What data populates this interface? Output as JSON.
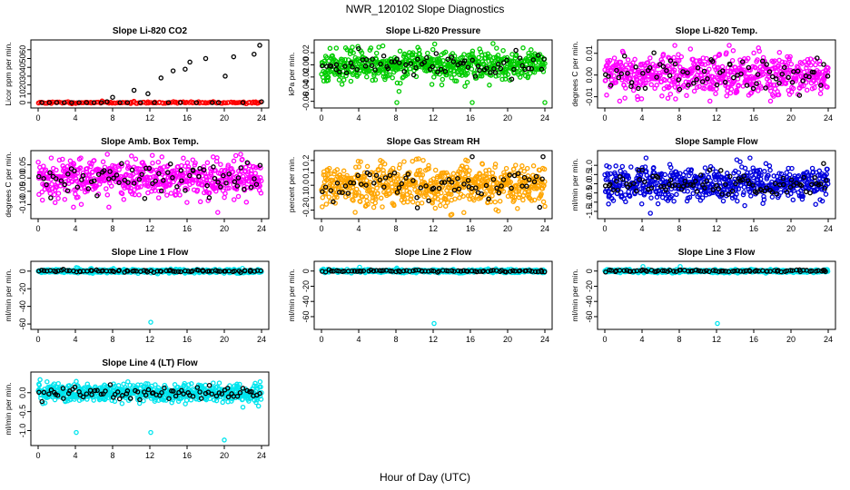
{
  "page": {
    "title": "NWR_120102  Slope Diagnostics",
    "xlabel": "Hour of Day (UTC)"
  },
  "chart_data": [
    {
      "type": "scatter",
      "title": "Slope Li-820 CO2",
      "ylabel": "Licor ppm per min.",
      "xlim": [
        0,
        24
      ],
      "xticks": [
        0,
        4,
        8,
        12,
        16,
        20,
        24
      ],
      "ylim": [
        -2,
        67
      ],
      "yticks": [
        0,
        10,
        20,
        30,
        40,
        50,
        60
      ],
      "color": "#ff0000",
      "series": [
        {
          "name": "all",
          "color": "#ff0000",
          "seed": 11,
          "n": 140,
          "center": 0,
          "spread": 0.5,
          "outliers": []
        },
        {
          "name": "flagged",
          "color": "#000000",
          "points": [
            [
              0.4,
              0
            ],
            [
              1.2,
              0
            ],
            [
              2,
              0
            ],
            [
              2.8,
              0
            ],
            [
              3.6,
              0
            ],
            [
              4.4,
              0
            ],
            [
              5.2,
              0
            ],
            [
              6,
              0
            ],
            [
              6.8,
              0
            ],
            [
              7.4,
              1
            ],
            [
              8,
              6
            ],
            [
              8.8,
              0
            ],
            [
              9.6,
              0
            ],
            [
              10.3,
              14
            ],
            [
              11,
              0
            ],
            [
              11.8,
              10
            ],
            [
              12.5,
              0
            ],
            [
              13.2,
              28
            ],
            [
              14,
              0
            ],
            [
              14.5,
              36
            ],
            [
              15.3,
              0
            ],
            [
              15.8,
              38
            ],
            [
              16.3,
              46
            ],
            [
              17,
              0
            ],
            [
              18,
              50
            ],
            [
              18.7,
              0
            ],
            [
              19.4,
              0
            ],
            [
              20.1,
              30
            ],
            [
              21,
              52
            ],
            [
              22,
              0
            ],
            [
              23.2,
              55
            ],
            [
              23.8,
              65
            ],
            [
              24,
              1
            ]
          ]
        }
      ]
    },
    {
      "type": "scatter",
      "title": "Slope Li-820 Pressure",
      "ylabel": "kPa per min.",
      "xlim": [
        0,
        24
      ],
      "xticks": [
        0,
        4,
        8,
        12,
        16,
        20,
        24
      ],
      "ylim": [
        -0.065,
        0.035
      ],
      "yticks": [
        -0.06,
        -0.04,
        -0.02,
        0.0,
        0.02
      ],
      "yticklabels": [
        "-0.06",
        "-0.04",
        "-0.02",
        "0.00",
        "0.02"
      ],
      "color": "#00cc00",
      "series": [
        {
          "name": "all",
          "color": "#00cc00",
          "seed": 23,
          "n": 600,
          "center": 0.0,
          "spread": 0.012,
          "outliers": [
            [
              2.2,
              -0.032
            ],
            [
              2.6,
              0.028
            ],
            [
              4.2,
              0.023
            ],
            [
              8.1,
              -0.062
            ],
            [
              16.2,
              -0.062
            ],
            [
              24,
              -0.062
            ]
          ]
        },
        {
          "name": "flagged",
          "color": "#000000",
          "seed": 29,
          "n": 75,
          "center": 0.0,
          "spread": 0.009,
          "outliers": []
        }
      ]
    },
    {
      "type": "scatter",
      "title": "Slope Li-820 Temp.",
      "ylabel": "degrees C per min.",
      "xlim": [
        0,
        24
      ],
      "xticks": [
        0,
        4,
        8,
        12,
        16,
        20,
        24
      ],
      "ylim": [
        -0.0135,
        0.0145
      ],
      "yticks": [
        -0.01,
        0.0,
        0.01
      ],
      "yticklabels": [
        "-0.01",
        "0.00",
        "0.01"
      ],
      "color": "#ff00ff",
      "series": [
        {
          "name": "all",
          "color": "#ff00ff",
          "seed": 37,
          "n": 600,
          "center": 0.0,
          "spread": 0.0045,
          "outliers": [
            [
              1.6,
              -0.012
            ],
            [
              7.6,
              -0.011
            ],
            [
              9.2,
              0.012
            ],
            [
              11.3,
              -0.012
            ],
            [
              16.6,
              0.011
            ],
            [
              17.8,
              -0.012
            ]
          ]
        },
        {
          "name": "flagged",
          "color": "#000000",
          "seed": 41,
          "n": 75,
          "center": 0.0,
          "spread": 0.004,
          "outliers": []
        }
      ]
    },
    {
      "type": "scatter",
      "title": "Slope Amb. Box Temp.",
      "ylabel": "degrees C per min.",
      "xlim": [
        0,
        24
      ],
      "xticks": [
        0,
        4,
        8,
        12,
        16,
        20,
        24
      ],
      "ylim": [
        -0.14,
        0.09
      ],
      "yticks": [
        -0.1,
        -0.05,
        0.0,
        0.05
      ],
      "yticklabels": [
        "-0.10",
        "-0.05",
        "0.00",
        "0.05"
      ],
      "color": "#ff00ff",
      "series": [
        {
          "name": "all",
          "color": "#ff00ff",
          "seed": 53,
          "n": 600,
          "center": 0.0,
          "spread": 0.035,
          "outliers": [
            [
              19.3,
              -0.13
            ],
            [
              7.6,
              -0.11
            ],
            [
              3.8,
              -0.11
            ],
            [
              13.3,
              0.08
            ],
            [
              18.8,
              0.08
            ]
          ]
        },
        {
          "name": "flagged",
          "color": "#000000",
          "seed": 59,
          "n": 75,
          "center": 0.0,
          "spread": 0.03,
          "outliers": []
        }
      ]
    },
    {
      "type": "scatter",
      "title": "Slope Gas Stream RH",
      "ylabel": "percent per min.",
      "xlim": [
        0,
        24
      ],
      "xticks": [
        0,
        4,
        8,
        12,
        16,
        20,
        24
      ],
      "ylim": [
        -0.24,
        0.25
      ],
      "yticks": [
        -0.2,
        -0.1,
        0.0,
        0.1,
        0.2
      ],
      "yticklabels": [
        "-0.2",
        "-0.1",
        "0.0",
        "0.1",
        "0.2"
      ],
      "color": "#ffa500",
      "series": [
        {
          "name": "all",
          "color": "#ffa500",
          "seed": 67,
          "n": 650,
          "center": 0.0,
          "spread": 0.075,
          "outliers": [
            [
              15.3,
              -0.22
            ],
            [
              24,
              -0.17
            ],
            [
              4.2,
              0.19
            ],
            [
              17.3,
              0.17
            ]
          ]
        },
        {
          "name": "flagged",
          "color": "#000000",
          "seed": 71,
          "n": 70,
          "center": 0.0,
          "spread": 0.07,
          "outliers": [
            [
              16.2,
              0.23
            ],
            [
              23.8,
              0.23
            ]
          ]
        }
      ]
    },
    {
      "type": "scatter",
      "title": "Slope Sample Flow",
      "ylabel": "ml/min per min.",
      "xlim": [
        0,
        24
      ],
      "xticks": [
        0,
        4,
        8,
        12,
        16,
        20,
        24
      ],
      "ylim": [
        -1.7,
        1.6
      ],
      "yticks": [
        -1.5,
        -1.0,
        -0.5,
        0.0,
        0.5,
        1.0
      ],
      "yticklabels": [
        "-1.5",
        "-1.0",
        "-0.5",
        "0.0",
        "0.5",
        "1.0"
      ],
      "color": "#0000dd",
      "series": [
        {
          "name": "all",
          "color": "#0000dd",
          "seed": 79,
          "n": 600,
          "center": 0.0,
          "spread": 0.45,
          "outliers": [
            [
              4.9,
              -1.6
            ],
            [
              15.6,
              1.4
            ],
            [
              0.4,
              -1.1
            ]
          ]
        },
        {
          "name": "flagged",
          "color": "#000000",
          "seed": 83,
          "n": 90,
          "center": 0.0,
          "spread": 0.3,
          "outliers": [
            [
              23.5,
              1.1
            ]
          ]
        }
      ]
    },
    {
      "type": "scatter",
      "title": "Slope Line 1 Flow",
      "ylabel": "ml/min per min.",
      "xlim": [
        0,
        24
      ],
      "xticks": [
        0,
        4,
        8,
        12,
        16,
        20,
        24
      ],
      "ylim": [
        -62,
        7
      ],
      "yticks": [
        -60,
        -40,
        -20,
        0
      ],
      "yticklabels": [
        "-60",
        "-40",
        "-20",
        "0"
      ],
      "color": "#00e5ee",
      "series": [
        {
          "name": "all",
          "color": "#00e5ee",
          "seed": 89,
          "n": 500,
          "center": 0.0,
          "spread": 1.0,
          "outliers": [
            [
              4.1,
              4
            ],
            [
              8.1,
              3
            ],
            [
              12.1,
              -58
            ]
          ]
        },
        {
          "name": "flagged",
          "color": "#000000",
          "seed": 97,
          "n": 80,
          "center": 0.0,
          "spread": 0.7,
          "outliers": []
        }
      ]
    },
    {
      "type": "scatter",
      "title": "Slope Line 2 Flow",
      "ylabel": "ml/min per min.",
      "xlim": [
        0,
        24
      ],
      "xticks": [
        0,
        4,
        8,
        12,
        16,
        20,
        24
      ],
      "ylim": [
        -72,
        8
      ],
      "yticks": [
        -60,
        -40,
        -20,
        0
      ],
      "yticklabels": [
        "-60",
        "-40",
        "-20",
        "0"
      ],
      "color": "#00e5ee",
      "series": [
        {
          "name": "all",
          "color": "#00e5ee",
          "seed": 101,
          "n": 500,
          "center": 0.0,
          "spread": 1.0,
          "outliers": [
            [
              4.1,
              5
            ],
            [
              8.1,
              4
            ],
            [
              12.1,
              -69
            ]
          ]
        },
        {
          "name": "flagged",
          "color": "#000000",
          "seed": 103,
          "n": 80,
          "center": 0.0,
          "spread": 0.7,
          "outliers": [
            [
              23.6,
              1
            ]
          ]
        }
      ]
    },
    {
      "type": "scatter",
      "title": "Slope Line 3 Flow",
      "ylabel": "ml/min per min.",
      "xlim": [
        0,
        24
      ],
      "xticks": [
        0,
        4,
        8,
        12,
        16,
        20,
        24
      ],
      "ylim": [
        -72,
        8
      ],
      "yticks": [
        -60,
        -40,
        -20,
        0
      ],
      "yticklabels": [
        "-60",
        "-40",
        "-20",
        "0"
      ],
      "color": "#00e5ee",
      "series": [
        {
          "name": "all",
          "color": "#00e5ee",
          "seed": 107,
          "n": 500,
          "center": 0.0,
          "spread": 1.0,
          "outliers": [
            [
              4.1,
              6
            ],
            [
              8.1,
              6
            ],
            [
              12.1,
              -69
            ]
          ]
        },
        {
          "name": "flagged",
          "color": "#000000",
          "seed": 109,
          "n": 80,
          "center": 0.0,
          "spread": 0.7,
          "outliers": [
            [
              23.6,
              1
            ]
          ]
        }
      ]
    },
    {
      "type": "scatter",
      "title": "Slope Line 4 (LT) Flow",
      "ylabel": "ml/min per min.",
      "xlim": [
        0,
        24
      ],
      "xticks": [
        0,
        4,
        8,
        12,
        16,
        20,
        24
      ],
      "ylim": [
        -1.3,
        0.45
      ],
      "yticks": [
        -1.0,
        -0.5,
        0.0
      ],
      "yticklabels": [
        "-1.0",
        "-0.5",
        "0.0"
      ],
      "color": "#00e5ee",
      "series": [
        {
          "name": "all",
          "color": "#00e5ee",
          "seed": 113,
          "n": 600,
          "center": 0.0,
          "spread": 0.12,
          "outliers": [
            [
              4.1,
              -1.05
            ],
            [
              12.1,
              -1.05
            ],
            [
              20,
              -1.25
            ],
            [
              4.1,
              0.3
            ]
          ]
        },
        {
          "name": "flagged",
          "color": "#000000",
          "seed": 127,
          "n": 80,
          "center": 0.0,
          "spread": 0.1,
          "outliers": []
        }
      ]
    }
  ]
}
